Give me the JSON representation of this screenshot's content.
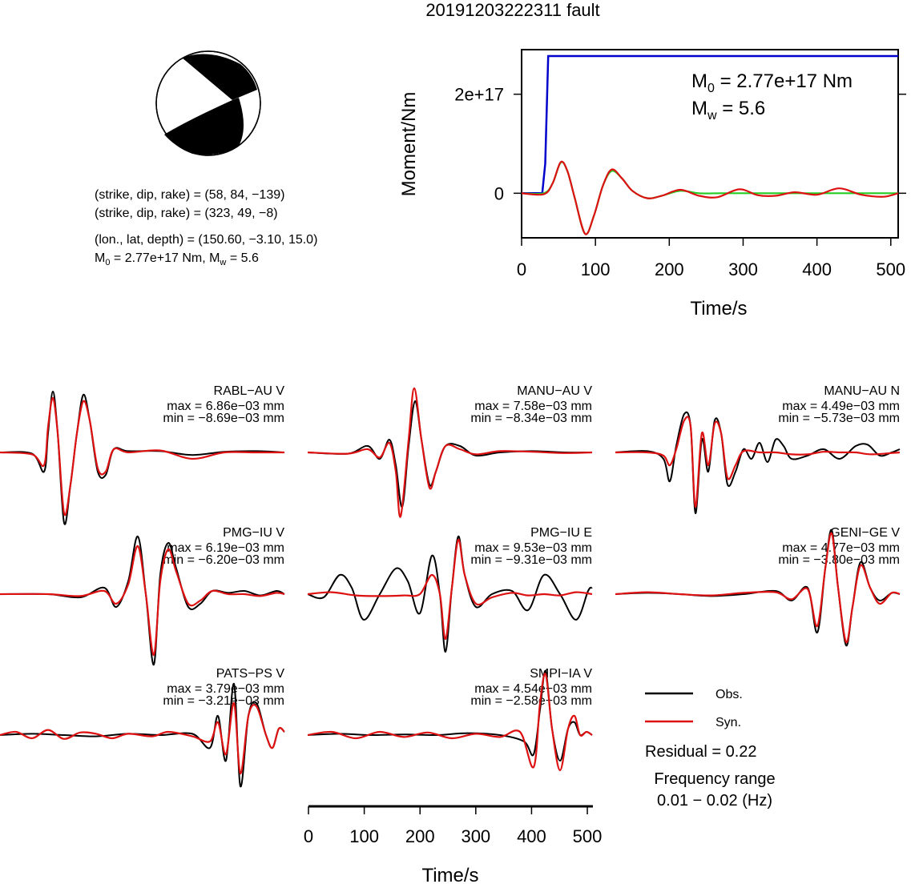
{
  "title": "20191203222311 fault",
  "beachball": {
    "planes": [
      "(strike, dip, rake) = (58, 84, −139)",
      "(strike, dip, rake) = (323, 49, −8)"
    ],
    "location": "(lon., lat, depth) = (150.60, −3.10, 15.0)",
    "m0_prefix": "M",
    "m0_sub": "0",
    "m0_rest": " = 2.77e+17 Nm, M",
    "mw_sub": "w",
    "mw_rest": " = 5.6"
  },
  "moment_plot": {
    "ylabel": "Moment/Nm",
    "xlabel": "Time/s",
    "xticks": [
      "0",
      "100",
      "200",
      "300",
      "400",
      "500"
    ],
    "yticks": [
      "0",
      "2e+17"
    ],
    "m0_label": "M",
    "m0_sub": "0",
    "m0_value": " = 2.77e+17 Nm",
    "mw_label": "M",
    "mw_sub": "w",
    "mw_value": " = 5.6",
    "colors": {
      "cumulative": "#0000cc",
      "rate_red": "#dd1111",
      "rate_green": "#22cc22"
    }
  },
  "chart_data": [
    {
      "type": "line",
      "title": "",
      "xlabel": "Time/s",
      "ylabel": "Moment/Nm",
      "xlim": [
        0,
        510
      ],
      "ylim": [
        -9e+16,
        2.9e+17
      ],
      "series": [
        {
          "name": "",
          "color": "#0000cc",
          "x": [
            0,
            28,
            32,
            36,
            510
          ],
          "y": [
            0,
            0,
            6e+16,
            2.77e+17,
            2.77e+17
          ]
        },
        {
          "name": "",
          "color": "#22cc22",
          "x": [
            0,
            30,
            42,
            53,
            62,
            72,
            86,
            98,
            110,
            122,
            136,
            150,
            170,
            190,
            215,
            240,
            270,
            300,
            330,
            360,
            400,
            440,
            480,
            510
          ],
          "y": [
            0,
            0,
            2e+16,
            6.2e+16,
            4.5e+16,
            -1e+16,
            -8.2e+16,
            -4.5e+16,
            1.5e+16,
            4.5e+16,
            3e+16,
            5000000000000000.0,
            -1e+16,
            -5000000000000000.0,
            5000000000000000.0,
            0.0,
            0,
            0,
            0,
            0,
            0,
            0,
            0,
            0
          ]
        },
        {
          "name": "",
          "color": "#dd1111",
          "x": [
            0,
            30,
            42,
            53,
            62,
            72,
            86,
            98,
            110,
            122,
            136,
            150,
            170,
            190,
            215,
            240,
            265,
            295,
            320,
            345,
            370,
            400,
            430,
            460,
            490,
            510
          ],
          "y": [
            0,
            -2000000000000000.0,
            2e+16,
            6.3e+16,
            4.5e+16,
            -1e+16,
            -8.2e+16,
            -4.5e+16,
            1.5e+16,
            4.8e+16,
            3e+16,
            5000000000000000.0,
            -1e+16,
            -5000000000000000.0,
            7000000000000000.0,
            -5000000000000000.0,
            -8000000000000000.0,
            8000000000000000.0,
            -4000000000000000.0,
            -5000000000000000.0,
            2000000000000000.0,
            -3000000000000000.0,
            1e+16,
            -3000000000000000.0,
            -7000000000000000.0,
            0.0
          ]
        }
      ]
    },
    {
      "type": "line",
      "note": "waveform comparison panels (Obs. vs Syn.)",
      "xlabel": "Time/s",
      "xticks": [
        "0",
        "100",
        "200",
        "300",
        "400",
        "500"
      ],
      "xlim": [
        0,
        510
      ],
      "panels": [
        {
          "station": "RABL−AU V",
          "max": "max = 6.86e−03 mm",
          "min": "min = −8.69e−03 mm"
        },
        {
          "station": "MANU−AU V",
          "max": "max = 7.58e−03 mm",
          "min": "min = −8.34e−03 mm"
        },
        {
          "station": "MANU−AU N",
          "max": "max = 4.49e−03 mm",
          "min": "min = −5.73e−03 mm"
        },
        {
          "station": "PMG−IU V",
          "max": "max = 6.19e−03 mm",
          "min": "min = −6.20e−03 mm"
        },
        {
          "station": "PMG−IU E",
          "max": "max = 9.53e−03 mm",
          "min": "min = −9.31e−03 mm"
        },
        {
          "station": "GENI−GE V",
          "max": "max = 4.77e−03 mm",
          "min": "min = −3.80e−03 mm"
        },
        {
          "station": "PATS−PS V",
          "max": "max = 3.79e−03 mm",
          "min": "min = −3.21e−03 mm"
        },
        {
          "station": "SMPI−IA V",
          "max": "max = 4.54e−03 mm",
          "min": "min = −2.58e−03 mm"
        }
      ]
    }
  ],
  "legend": {
    "obs": "Obs.",
    "syn": "Syn.",
    "obs_color": "#000000",
    "syn_color": "#dd1111"
  },
  "residual": "Residual = 0.22",
  "freq_label": "Frequency range",
  "freq_value": "0.01 − 0.02 (Hz)",
  "waveforms": {
    "RABL": {
      "obs": [
        [
          0,
          0
        ],
        [
          40,
          -0.02
        ],
        [
          55,
          -0.3
        ],
        [
          62,
          0.7
        ],
        [
          68,
          0.95
        ],
        [
          75,
          0.3
        ],
        [
          82,
          -0.9
        ],
        [
          90,
          -0.6
        ],
        [
          98,
          0.2
        ],
        [
          105,
          0.7
        ],
        [
          112,
          0.5
        ],
        [
          122,
          -0.2
        ],
        [
          132,
          -0.3
        ],
        [
          142,
          0.1
        ],
        [
          155,
          0.05
        ],
        [
          170,
          0
        ],
        [
          200,
          0.02
        ],
        [
          240,
          -0.03
        ],
        [
          280,
          0
        ],
        [
          320,
          0.02
        ],
        [
          360,
          0
        ]
      ],
      "syn": [
        [
          0,
          0
        ],
        [
          40,
          -0.03
        ],
        [
          55,
          -0.2
        ],
        [
          62,
          0.6
        ],
        [
          68,
          0.9
        ],
        [
          75,
          0.3
        ],
        [
          82,
          -0.85
        ],
        [
          90,
          -0.55
        ],
        [
          98,
          0.15
        ],
        [
          105,
          0.65
        ],
        [
          112,
          0.45
        ],
        [
          122,
          -0.15
        ],
        [
          132,
          -0.25
        ],
        [
          142,
          0.05
        ],
        [
          155,
          0.02
        ],
        [
          170,
          0
        ],
        [
          200,
          0.01
        ],
        [
          240,
          -0.06
        ],
        [
          280,
          -0.02
        ],
        [
          320,
          0
        ],
        [
          360,
          0
        ]
      ]
    }
  }
}
